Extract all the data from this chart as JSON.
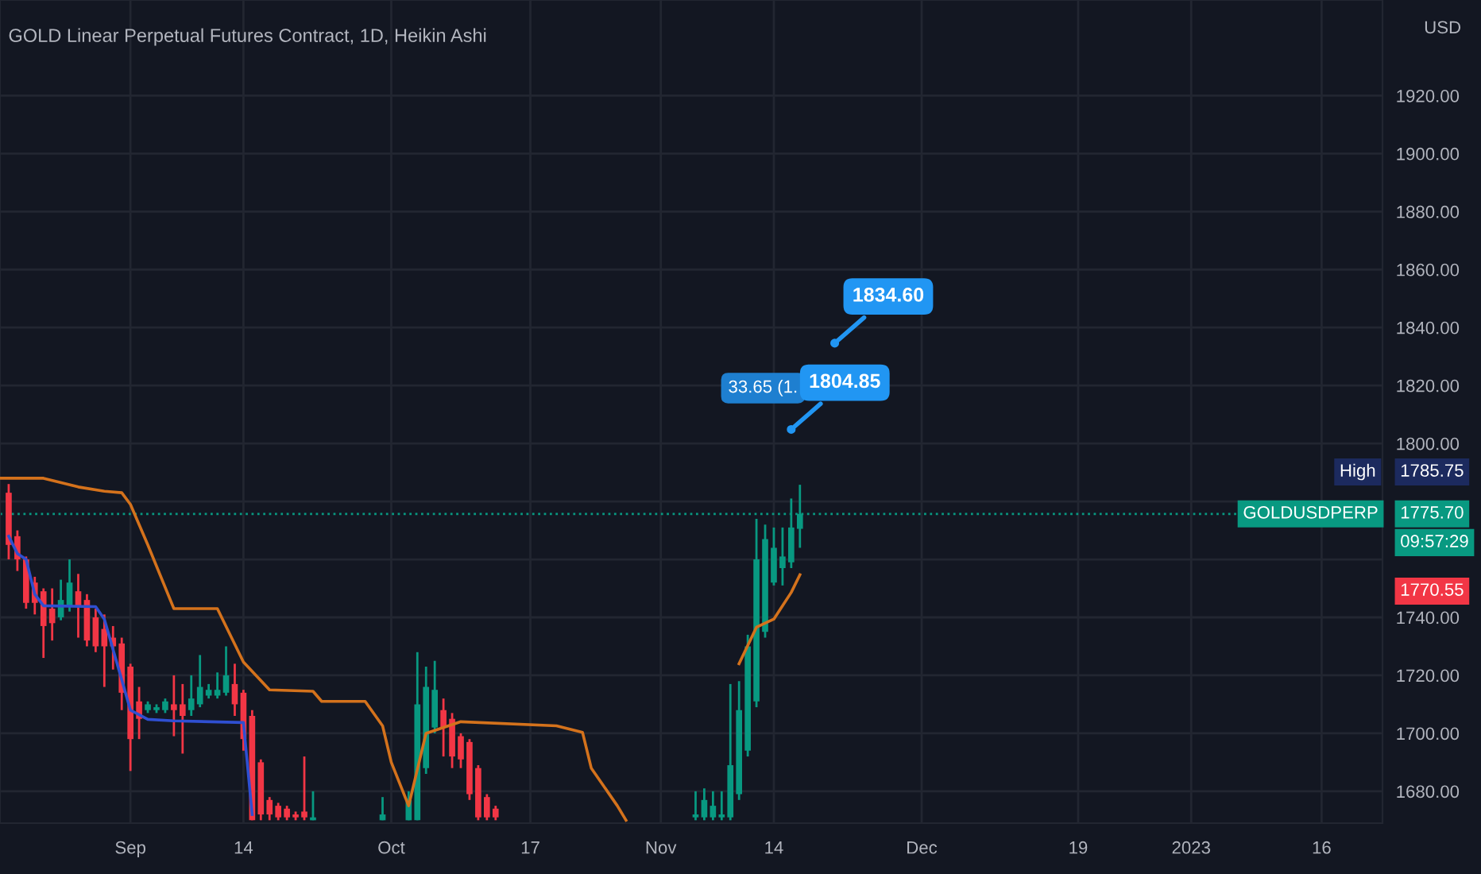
{
  "chart_data": {
    "type": "candlestick",
    "title": "GOLD Linear Perpetual Futures Contract, 1D, Heikin Ashi",
    "ylabel": "USD",
    "x": [
      "2022-08-18",
      "2022-08-19",
      "2022-08-20",
      "2022-08-21",
      "2022-08-22",
      "2022-08-23",
      "2022-08-24",
      "2022-08-25",
      "2022-08-26",
      "2022-08-27",
      "2022-08-28",
      "2022-08-29",
      "2022-08-30",
      "2022-08-31",
      "2022-09-01",
      "2022-09-02",
      "2022-09-03",
      "2022-09-04",
      "2022-09-05",
      "2022-09-06",
      "2022-09-07",
      "2022-09-08",
      "2022-09-09",
      "2022-09-10",
      "2022-09-11",
      "2022-09-12",
      "2022-09-13",
      "2022-09-14",
      "2022-09-15",
      "2022-09-16",
      "2022-09-17",
      "2022-09-18",
      "2022-09-19",
      "2022-09-20",
      "2022-09-21",
      "2022-09-22",
      "2022-09-30",
      "2022-10-03",
      "2022-10-04",
      "2022-10-05",
      "2022-10-06",
      "2022-10-07",
      "2022-10-08",
      "2022-10-09",
      "2022-10-10",
      "2022-10-11",
      "2022-10-12",
      "2022-10-13",
      "2022-11-05",
      "2022-11-06",
      "2022-11-07",
      "2022-11-08",
      "2022-11-09",
      "2022-11-10",
      "2022-11-11",
      "2022-11-12",
      "2022-11-13",
      "2022-11-14",
      "2022-11-15",
      "2022-11-16",
      "2022-11-17"
    ],
    "ohlc": [
      [
        1783,
        1786,
        1760,
        1765
      ],
      [
        1768,
        1770,
        1756,
        1760
      ],
      [
        1760,
        1761,
        1743,
        1745
      ],
      [
        1752,
        1754,
        1741,
        1745
      ],
      [
        1749,
        1750,
        1726,
        1737
      ],
      [
        1743,
        1750,
        1732,
        1738
      ],
      [
        1740,
        1753,
        1739,
        1746
      ],
      [
        1744,
        1760,
        1742,
        1752
      ],
      [
        1749,
        1755,
        1733,
        1744
      ],
      [
        1746,
        1748,
        1730,
        1732
      ],
      [
        1740,
        1743,
        1728,
        1730
      ],
      [
        1736,
        1741,
        1716,
        1730
      ],
      [
        1733,
        1737,
        1722,
        1730
      ],
      [
        1731,
        1733,
        1708,
        1714
      ],
      [
        1723,
        1724,
        1687,
        1698
      ],
      [
        1711,
        1716,
        1698,
        1705
      ],
      [
        1708,
        1711,
        1707,
        1710
      ],
      [
        1708,
        1710,
        1707,
        1709
      ],
      [
        1708,
        1712,
        1707,
        1711
      ],
      [
        1710,
        1720,
        1699,
        1708
      ],
      [
        1710,
        1717,
        1693,
        1706
      ],
      [
        1708,
        1720,
        1706,
        1712
      ],
      [
        1710,
        1727,
        1709,
        1716
      ],
      [
        1713,
        1717,
        1712,
        1715
      ],
      [
        1713,
        1721,
        1712,
        1715
      ],
      [
        1714,
        1730,
        1713,
        1720
      ],
      [
        1717,
        1724,
        1706,
        1710
      ],
      [
        1714,
        1715,
        1694,
        1698
      ],
      [
        1706,
        1708,
        1670,
        1670
      ],
      [
        1690,
        1691,
        1670,
        1672
      ],
      [
        1677,
        1678,
        1670,
        1672
      ],
      [
        1675,
        1676,
        1670,
        1671
      ],
      [
        1674,
        1675,
        1670,
        1671
      ],
      [
        1672,
        1673,
        1670,
        1671
      ],
      [
        1673,
        1692,
        1670,
        1671
      ],
      [
        1670,
        1680,
        1670,
        1671
      ],
      [
        1670,
        1678,
        1670,
        1672
      ],
      [
        1670,
        1680,
        1670,
        1677
      ],
      [
        1670,
        1728,
        1670,
        1710
      ],
      [
        1688,
        1723,
        1686,
        1716
      ],
      [
        1702,
        1725,
        1700,
        1715
      ],
      [
        1708,
        1712,
        1692,
        1702
      ],
      [
        1705,
        1707,
        1688,
        1692
      ],
      [
        1699,
        1700,
        1688,
        1691
      ],
      [
        1697,
        1698,
        1677,
        1679
      ],
      [
        1688,
        1689,
        1670,
        1671
      ],
      [
        1678,
        1679,
        1670,
        1671
      ],
      [
        1674,
        1675,
        1670,
        1671
      ],
      [
        1671,
        1680,
        1670,
        1672
      ],
      [
        1671,
        1681,
        1670,
        1677
      ],
      [
        1671,
        1680,
        1670,
        1675
      ],
      [
        1671,
        1680,
        1670,
        1672
      ],
      [
        1671,
        1717,
        1670,
        1689
      ],
      [
        1679,
        1718,
        1677,
        1708
      ],
      [
        1694,
        1734,
        1692,
        1730
      ],
      [
        1711,
        1774,
        1709,
        1760
      ],
      [
        1735,
        1772,
        1733,
        1767
      ],
      [
        1752,
        1771,
        1751,
        1764
      ],
      [
        1757,
        1771,
        1751,
        1761
      ],
      [
        1759,
        1781,
        1757,
        1771
      ],
      [
        1770.55,
        1785.75,
        1764,
        1775.7
      ]
    ],
    "colors": [
      "#f23645",
      "#f23645",
      "#f23645",
      "#f23645",
      "#f23645",
      "#f23645",
      "#089981",
      "#089981",
      "#f23645",
      "#f23645",
      "#f23645",
      "#f23645",
      "#f23645",
      "#f23645",
      "#f23645",
      "#f23645",
      "#089981",
      "#089981",
      "#089981",
      "#f23645",
      "#f23645",
      "#089981",
      "#089981",
      "#089981",
      "#089981",
      "#089981",
      "#f23645",
      "#f23645",
      "#f23645",
      "#f23645",
      "#f23645",
      "#f23645",
      "#f23645",
      "#f23645",
      "#f23645",
      "#089981",
      "#089981",
      "#089981",
      "#089981",
      "#089981",
      "#089981",
      "#f23645",
      "#f23645",
      "#f23645",
      "#f23645",
      "#f23645",
      "#f23645",
      "#f23645",
      "#089981",
      "#089981",
      "#089981",
      "#089981",
      "#089981",
      "#089981",
      "#089981",
      "#089981",
      "#089981",
      "#089981",
      "#089981",
      "#089981",
      "#089981"
    ],
    "series": [
      {
        "type": "line",
        "color": "#d4721c",
        "x": [
          "2022-08-17",
          "2022-08-22",
          "2022-08-26",
          "2022-08-29",
          "2022-08-31",
          "2022-09-01",
          "2022-09-03",
          "2022-09-06",
          "2022-09-11",
          "2022-09-14",
          "2022-09-17",
          "2022-09-22",
          "2022-09-23",
          "2022-09-28",
          "2022-09-30",
          "2022-10-01",
          "2022-10-03",
          "2022-10-05",
          "2022-10-09",
          "2022-10-20",
          "2022-10-23",
          "2022-10-24",
          "2022-10-27",
          "2022-10-28",
          "2022-11-01",
          "2022-11-10",
          "2022-11-12",
          "2022-11-14",
          "2022-11-16",
          "2022-11-17"
        ],
        "values": [
          1788,
          1788,
          1785,
          1783.5,
          1783,
          1779,
          1765,
          1743,
          1743,
          1724.6,
          1715,
          1714.5,
          1711,
          1711,
          1702.6,
          1690,
          1675,
          1700,
          1704,
          1702.6,
          1700.3,
          1688,
          1675,
          1670,
          null,
          1724,
          1736.6,
          1739.4,
          1748.6,
          1754.7
        ]
      },
      {
        "type": "line",
        "color": "#2f4fd1",
        "x": [
          "2022-08-18",
          "2022-08-19",
          "2022-08-20",
          "2022-08-21",
          "2022-08-22",
          "2022-08-28",
          "2022-08-29",
          "2022-08-31",
          "2022-09-01",
          "2022-09-03",
          "2022-09-06",
          "2022-09-14",
          "2022-09-15"
        ],
        "values": [
          1768,
          1762,
          1760,
          1748,
          1744,
          1743.7,
          1739.4,
          1718.5,
          1708,
          1704.8,
          1704.3,
          1703.7,
          1672
        ]
      }
    ],
    "xlim": [
      "2022-08-17",
      "2023-01-23"
    ],
    "xticks": [
      {
        "value": "2022-09-01",
        "label": "Sep"
      },
      {
        "value": "2022-09-14",
        "label": "14"
      },
      {
        "value": "2022-10-01",
        "label": "Oct"
      },
      {
        "value": "2022-10-17",
        "label": "17"
      },
      {
        "value": "2022-11-01",
        "label": "Nov"
      },
      {
        "value": "2022-11-14",
        "label": "14"
      },
      {
        "value": "2022-12-01",
        "label": "Dec"
      },
      {
        "value": "2022-12-19",
        "label": "19"
      },
      {
        "value": "2023-01-01",
        "label": "2023"
      },
      {
        "value": "2023-01-16",
        "label": "16"
      }
    ],
    "ylim": [
      1669,
      1953
    ],
    "yticks": [
      {
        "value": 1680,
        "label": "1680.00"
      },
      {
        "value": 1700,
        "label": "1700.00"
      },
      {
        "value": 1720,
        "label": "1720.00"
      },
      {
        "value": 1740,
        "label": "1740.00"
      },
      {
        "value": 1760,
        "label": null
      },
      {
        "value": 1780,
        "label": null
      },
      {
        "value": 1800,
        "label": "1800.00"
      },
      {
        "value": 1820,
        "label": "1820.00"
      },
      {
        "value": 1840,
        "label": "1840.00"
      },
      {
        "value": 1860,
        "label": "1860.00"
      },
      {
        "value": 1880,
        "label": "1880.00"
      },
      {
        "value": 1900,
        "label": "1900.00"
      },
      {
        "value": 1920,
        "label": "1920.00"
      }
    ],
    "grid": true,
    "ref_lines": [
      {
        "axis": "y",
        "value": 1775.7,
        "label": "GOLDUSDPERP",
        "color": "#089981",
        "line_style": "dotted"
      }
    ],
    "annotations": [
      {
        "text": "1834.60",
        "x": "2022-11-21",
        "y": 1834.6
      },
      {
        "text": "1804.85",
        "x": "2022-11-16",
        "y": 1804.85
      },
      "33.65 (1.",
      "High",
      "1785.75",
      "1775.70",
      "09:57:29",
      "1770.55"
    ]
  }
}
